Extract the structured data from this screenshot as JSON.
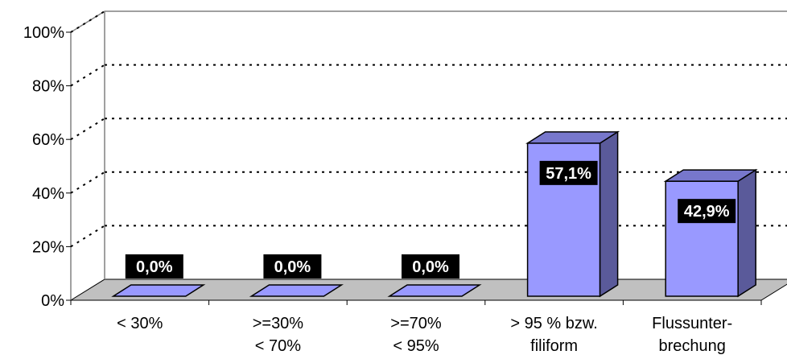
{
  "chart_data": {
    "type": "bar",
    "style": "3d-column",
    "categories": [
      [
        "< 30%"
      ],
      [
        ">=30%",
        "< 70%"
      ],
      [
        ">=70%",
        "< 95%"
      ],
      [
        "> 95 % bzw.",
        "filiform"
      ],
      [
        "Flussunter-",
        "brechung"
      ]
    ],
    "values": [
      0.0,
      0.0,
      0.0,
      57.1,
      42.9
    ],
    "data_labels": [
      "0,0%",
      "0,0%",
      "0,0%",
      "57,1%",
      "42,9%"
    ],
    "y_ticks": [
      "0%",
      "20%",
      "40%",
      "60%",
      "80%",
      "100%"
    ],
    "ylim": [
      0,
      100
    ],
    "title": "",
    "xlabel": "",
    "ylabel": "",
    "grid": "dotted-horizontal",
    "legend": "none",
    "colors": {
      "bar_front": "#9999ff",
      "bar_side": "#5a5a9a",
      "bar_top": "#7777cc",
      "floor": "#c0c0c0",
      "label_bg": "#000000",
      "label_text": "#ffffff"
    }
  }
}
